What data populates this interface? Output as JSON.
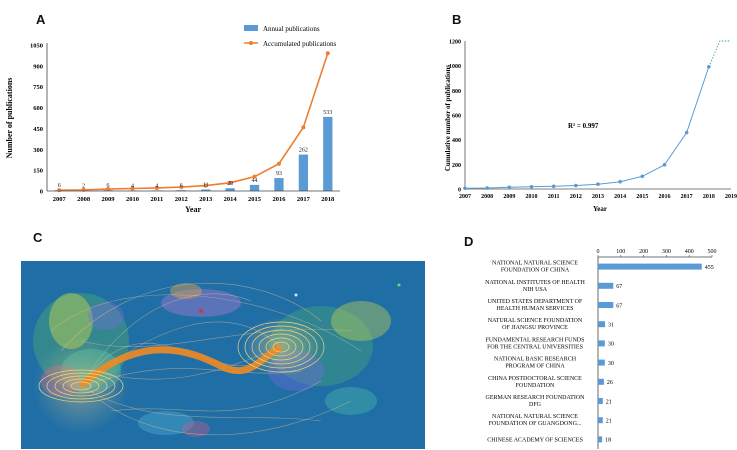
{
  "panels": {
    "a": "A",
    "b": "B",
    "c": "C",
    "d": "D"
  },
  "colors": {
    "bar": "#5b9bd5",
    "line": "#ed7d31",
    "fitline": "#5b9bd5",
    "network_bg": "#1f6fa6"
  },
  "chart_data": [
    {
      "id": "A",
      "type": "bar",
      "title": "",
      "xlabel": "Year",
      "ylabel": "Number of publications",
      "ylim": [
        0,
        1050
      ],
      "yticks": [
        "0",
        "150",
        "300",
        "450",
        "600",
        "750",
        "900",
        "1050"
      ],
      "categories": [
        "2007",
        "2008",
        "2009",
        "2010",
        "2011",
        "2012",
        "2013",
        "2014",
        "2015",
        "2016",
        "2017",
        "2018"
      ],
      "series": [
        {
          "name": "Annual publications",
          "kind": "bar",
          "values": [
            6,
            2,
            6,
            4,
            4,
            6,
            11,
            20,
            44,
            93,
            262,
            533
          ],
          "labels": [
            "6",
            "2",
            "6",
            "4",
            "4",
            "6",
            "11",
            "20",
            "44",
            "93",
            "262",
            "533"
          ]
        },
        {
          "name": "Accumulated publications",
          "kind": "line",
          "values": [
            6,
            8,
            14,
            18,
            22,
            28,
            39,
            59,
            103,
            196,
            458,
            991
          ]
        }
      ],
      "legend": "top-right"
    },
    {
      "id": "B",
      "type": "scatter",
      "xlabel": "Year",
      "ylabel": "Cumulative number of publications",
      "ylim": [
        0,
        1200
      ],
      "xlim": [
        2007,
        2019
      ],
      "yticks": [
        "0",
        "200",
        "400",
        "600",
        "800",
        "1000",
        "1200"
      ],
      "xticks": [
        "2007",
        "2008",
        "2009",
        "2010",
        "2011",
        "2012",
        "2013",
        "2014",
        "2015",
        "2016",
        "2017",
        "2018",
        "2019"
      ],
      "x": [
        2007,
        2008,
        2009,
        2010,
        2011,
        2012,
        2013,
        2014,
        2015,
        2016,
        2017,
        2018
      ],
      "y": [
        6,
        8,
        14,
        18,
        22,
        28,
        39,
        59,
        103,
        196,
        458,
        991
      ],
      "annotation": "R² = 0.997",
      "fit": "polynomial trend line"
    },
    {
      "id": "D",
      "type": "bar",
      "orientation": "horizontal",
      "xlim": [
        0,
        500
      ],
      "xticks": [
        "0",
        "100",
        "200",
        "300",
        "400",
        "500"
      ],
      "categories": [
        [
          "NATIONAL NATURAL SCIENCE",
          "FOUNDATION OF CHINA"
        ],
        [
          "NATIONAL INSTITUTES OF HEALTH",
          "NIH USA"
        ],
        [
          "UNITED STATES DEPARTMENT OF",
          "HEALTH HUMAN SERVICES"
        ],
        [
          "NATURAL SCIENCE FOUNDATION",
          "OF JIANGSU PROVINCE"
        ],
        [
          "FUNDAMENTAL RESEARCH FUNDS",
          "FOR THE CENTRAL UNIVERSITIES"
        ],
        [
          "NATIONAL BASIC RESEARCH",
          "PROGRAM OF CHINA"
        ],
        [
          "CHINA POSTDOCTORAL SCIENCE",
          "FOUNDATION"
        ],
        [
          "GERMAN RESEARCH FOUNDATION",
          "DFG"
        ],
        [
          "NATIONAL NATURAL SCIENCE",
          "FOUNDATION OF GUANGDONG..."
        ],
        [
          "CHINESE ACADEMY OF SCIENCES"
        ]
      ],
      "values": [
        455,
        67,
        67,
        31,
        30,
        30,
        26,
        21,
        21,
        18
      ],
      "labels": [
        "455",
        "67",
        "67",
        "31",
        "30",
        "30",
        "26",
        "21",
        "21",
        "18"
      ]
    }
  ]
}
